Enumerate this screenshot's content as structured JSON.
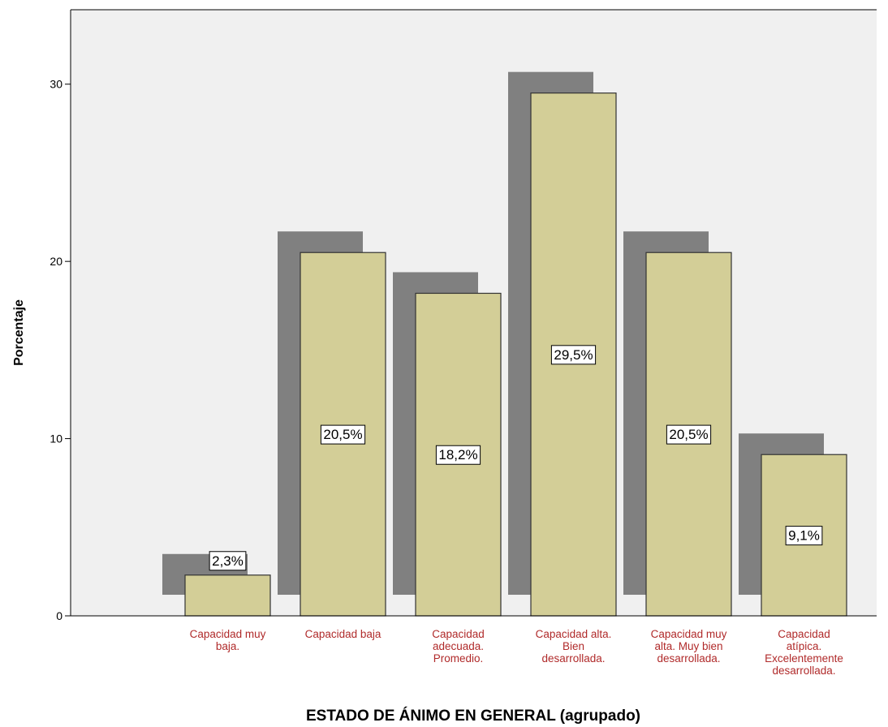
{
  "chart_data": {
    "type": "bar",
    "x_label": "ESTADO DE ÁNIMO EN GENERAL (agrupado)",
    "y_label": "Porcentaje",
    "categories": [
      "Capacidad  muy\nbaja.",
      "Capacidad baja",
      "Capacidad\nadecuada.\nPromedio.",
      "Capacidad alta.\nBien\ndesarrollada.",
      "Capacidad muy\nalta. Muy bien\ndesarrollada.",
      "Capacidad\natípica.\nExcelentemente\ndesarrollada."
    ],
    "values": [
      2.3,
      20.5,
      18.2,
      29.5,
      20.5,
      9.1
    ],
    "value_labels": [
      "2,3%",
      "20,5%",
      "18,2%",
      "29,5%",
      "20,5%",
      "9,1%"
    ],
    "color": "#d3ce97",
    "shadow_color": "#808080",
    "label_color": "#b02a2a",
    "ylim": [
      0,
      34.2
    ],
    "yticks": [
      0,
      10,
      20,
      30
    ]
  }
}
